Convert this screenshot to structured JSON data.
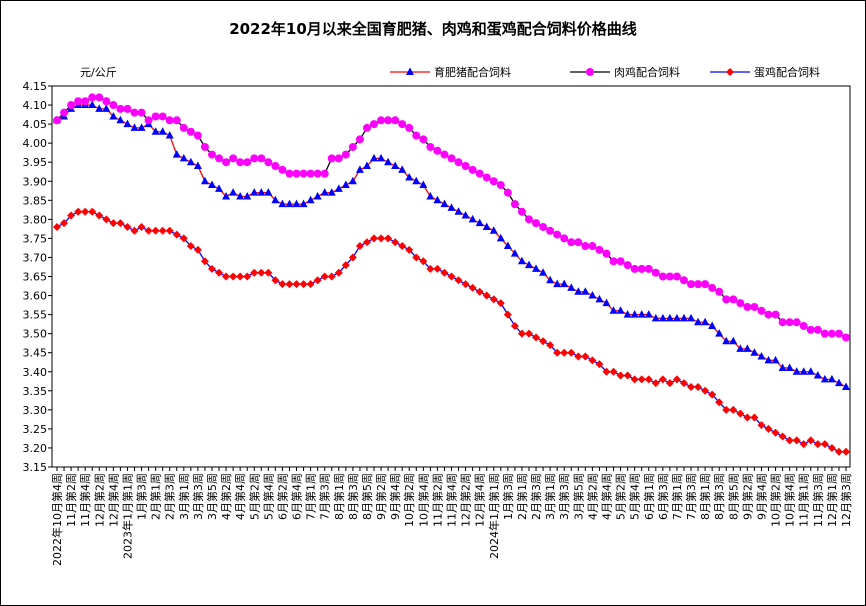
{
  "chart_data": {
    "type": "line",
    "title": "2022年10月以来全国育肥猪、肉鸡和蛋鸡配合饲料价格曲线",
    "y_unit": "元/公斤",
    "categories": [
      "2022年10月第4周",
      null,
      "11月第2周",
      null,
      "11月第4周",
      null,
      "12月第2周",
      null,
      "12月第4周",
      null,
      "2023年1月第1周",
      null,
      "1月第3周",
      null,
      "2月第1周",
      null,
      "2月第3周",
      null,
      "3月第1周",
      null,
      "3月第3周",
      null,
      "3月第5周",
      null,
      "4月第2周",
      null,
      "4月第4周",
      null,
      "5月第2周",
      null,
      "5月第4周",
      null,
      "6月第2周",
      null,
      "6月第4周",
      null,
      "7月第1周",
      null,
      "7月第3周",
      null,
      "8月第1周",
      null,
      "8月第3周",
      null,
      "8月第5周",
      null,
      "9月第2周",
      null,
      "9月第4周",
      null,
      "10月第2周",
      null,
      "10月第4周",
      null,
      "11月第2周",
      null,
      "11月第4周",
      null,
      "12月第2周",
      null,
      "12月第4周",
      null,
      "2024年1月第1周",
      null,
      "1月第3周",
      null,
      "2月第1周",
      null,
      "2月第3周",
      null,
      "3月第1周",
      null,
      "3月第3周",
      null,
      "3月第5周",
      null,
      "4月第2周",
      null,
      "4月第4周",
      null,
      "5月第2周",
      null,
      "5月第4周",
      null,
      "6月第1周",
      null,
      "6月第3周",
      null,
      "7月第1周",
      null,
      "7月第3周",
      null,
      "8月第1周",
      null,
      "8月第3周",
      null,
      "8月第5周",
      null,
      "9月第2周",
      null,
      "9月第4周",
      null,
      "10月第2周",
      null,
      "10月第4周",
      null,
      "11月第1周",
      null,
      "11月第3周",
      null,
      "12月第1周",
      null,
      "12月第3周"
    ],
    "series": [
      {
        "name": "育肥猪配合饲料",
        "color": "#0000ff",
        "line_color": "#ff0000",
        "marker": "triangle",
        "values": [
          4.06,
          4.07,
          4.09,
          4.1,
          4.1,
          4.1,
          4.09,
          4.09,
          4.07,
          4.06,
          4.05,
          4.04,
          4.04,
          4.05,
          4.03,
          4.03,
          4.02,
          3.97,
          3.96,
          3.95,
          3.94,
          3.9,
          3.89,
          3.88,
          3.86,
          3.87,
          3.86,
          3.86,
          3.87,
          3.87,
          3.87,
          3.85,
          3.84,
          3.84,
          3.84,
          3.84,
          3.85,
          3.86,
          3.87,
          3.87,
          3.88,
          3.89,
          3.9,
          3.93,
          3.94,
          3.96,
          3.96,
          3.95,
          3.94,
          3.93,
          3.91,
          3.9,
          3.89,
          3.86,
          3.85,
          3.84,
          3.83,
          3.82,
          3.81,
          3.8,
          3.79,
          3.78,
          3.77,
          3.75,
          3.73,
          3.71,
          3.69,
          3.68,
          3.67,
          3.66,
          3.64,
          3.63,
          3.63,
          3.62,
          3.61,
          3.61,
          3.6,
          3.59,
          3.58,
          3.56,
          3.56,
          3.55,
          3.55,
          3.55,
          3.55,
          3.54,
          3.54,
          3.54,
          3.54,
          3.54,
          3.54,
          3.53,
          3.53,
          3.52,
          3.5,
          3.48,
          3.48,
          3.46,
          3.46,
          3.45,
          3.44,
          3.43,
          3.43,
          3.41,
          3.41,
          3.4,
          3.4,
          3.4,
          3.39,
          3.38,
          3.38,
          3.37,
          3.36
        ]
      },
      {
        "name": "肉鸡配合饲料",
        "color": "#ff00ff",
        "line_color": "#000000",
        "marker": "circle",
        "values": [
          4.06,
          4.08,
          4.1,
          4.11,
          4.11,
          4.12,
          4.12,
          4.11,
          4.1,
          4.09,
          4.09,
          4.08,
          4.08,
          4.06,
          4.07,
          4.07,
          4.06,
          4.06,
          4.04,
          4.03,
          4.02,
          3.99,
          3.97,
          3.96,
          3.95,
          3.96,
          3.95,
          3.95,
          3.96,
          3.96,
          3.95,
          3.94,
          3.93,
          3.92,
          3.92,
          3.92,
          3.92,
          3.92,
          3.92,
          3.96,
          3.96,
          3.97,
          3.99,
          4.01,
          4.04,
          4.05,
          4.06,
          4.06,
          4.06,
          4.05,
          4.04,
          4.02,
          4.01,
          3.99,
          3.98,
          3.97,
          3.96,
          3.95,
          3.94,
          3.93,
          3.92,
          3.91,
          3.9,
          3.89,
          3.87,
          3.84,
          3.82,
          3.8,
          3.79,
          3.78,
          3.77,
          3.76,
          3.75,
          3.74,
          3.74,
          3.73,
          3.73,
          3.72,
          3.71,
          3.69,
          3.69,
          3.68,
          3.67,
          3.67,
          3.67,
          3.66,
          3.65,
          3.65,
          3.65,
          3.64,
          3.63,
          3.63,
          3.63,
          3.62,
          3.61,
          3.59,
          3.59,
          3.58,
          3.57,
          3.57,
          3.56,
          3.55,
          3.55,
          3.53,
          3.53,
          3.53,
          3.52,
          3.51,
          3.51,
          3.5,
          3.5,
          3.5,
          3.49
        ]
      },
      {
        "name": "蛋鸡配合饲料",
        "color": "#ff0000",
        "line_color": "#0000ff",
        "marker": "diamond",
        "values": [
          3.78,
          3.79,
          3.81,
          3.82,
          3.82,
          3.82,
          3.81,
          3.8,
          3.79,
          3.79,
          3.78,
          3.77,
          3.78,
          3.77,
          3.77,
          3.77,
          3.77,
          3.76,
          3.75,
          3.73,
          3.72,
          3.69,
          3.67,
          3.66,
          3.65,
          3.65,
          3.65,
          3.65,
          3.66,
          3.66,
          3.66,
          3.64,
          3.63,
          3.63,
          3.63,
          3.63,
          3.63,
          3.64,
          3.65,
          3.65,
          3.66,
          3.68,
          3.7,
          3.73,
          3.74,
          3.75,
          3.75,
          3.75,
          3.74,
          3.73,
          3.72,
          3.7,
          3.69,
          3.67,
          3.67,
          3.66,
          3.65,
          3.64,
          3.63,
          3.62,
          3.61,
          3.6,
          3.59,
          3.58,
          3.55,
          3.52,
          3.5,
          3.5,
          3.49,
          3.48,
          3.47,
          3.45,
          3.45,
          3.45,
          3.44,
          3.44,
          3.43,
          3.42,
          3.4,
          3.4,
          3.39,
          3.39,
          3.38,
          3.38,
          3.38,
          3.37,
          3.38,
          3.37,
          3.38,
          3.37,
          3.36,
          3.36,
          3.35,
          3.34,
          3.32,
          3.3,
          3.3,
          3.29,
          3.28,
          3.28,
          3.26,
          3.25,
          3.24,
          3.23,
          3.22,
          3.22,
          3.21,
          3.22,
          3.21,
          3.21,
          3.2,
          3.19,
          3.19
        ]
      }
    ],
    "ylim": [
      3.15,
      4.15
    ],
    "yticks": [
      4.15,
      {
        "value": 4.1,
        "label": "4.10"
      },
      4.05,
      {
        "value": 4,
        "label": "4.00"
      },
      3.95,
      {
        "value": 3.9,
        "label": "3.90"
      },
      3.85,
      {
        "value": 3.8,
        "label": "3.80"
      },
      3.75,
      {
        "value": 3.7,
        "label": "3.70"
      },
      3.65,
      {
        "value": 3.6,
        "label": "3.60"
      },
      3.55,
      {
        "value": 3.5,
        "label": "3.50"
      },
      3.45,
      {
        "value": 3.4,
        "label": "3.40"
      },
      3.35,
      {
        "value": 3.3,
        "label": "3.30"
      },
      3.25,
      {
        "value": 3.2,
        "label": "3.20"
      },
      3.15
    ],
    "grid": false,
    "legend": "top-right"
  }
}
